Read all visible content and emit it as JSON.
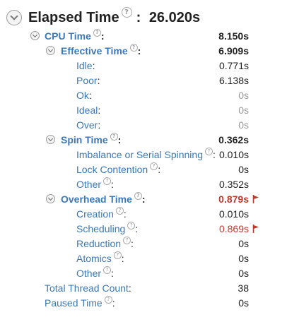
{
  "header": {
    "title": "Elapsed Time",
    "colon": ":",
    "value": "26.020s"
  },
  "help_glyph": "?",
  "colon": ":",
  "rows": [
    {
      "label": "CPU Time",
      "value": "8.150s"
    },
    {
      "label": "Effective Time",
      "value": "6.909s"
    },
    {
      "label": "Idle",
      "value": "0.771s"
    },
    {
      "label": "Poor",
      "value": "6.138s"
    },
    {
      "label": "Ok",
      "value": "0s"
    },
    {
      "label": "Ideal",
      "value": "0s"
    },
    {
      "label": "Over",
      "value": "0s"
    },
    {
      "label": "Spin Time",
      "value": "0.362s"
    },
    {
      "label": "Imbalance or Serial Spinning",
      "value": "0.010s"
    },
    {
      "label": "Lock Contention",
      "value": "0s"
    },
    {
      "label": "Other",
      "value": "0.352s"
    },
    {
      "label": "Overhead Time",
      "value": "0.879s"
    },
    {
      "label": "Creation",
      "value": "0.010s"
    },
    {
      "label": "Scheduling",
      "value": "0.869s"
    },
    {
      "label": "Reduction",
      "value": "0s"
    },
    {
      "label": "Atomics",
      "value": "0s"
    },
    {
      "label": "Other",
      "value": "0s"
    },
    {
      "label": "Total Thread Count",
      "value": "38"
    },
    {
      "label": "Paused Time",
      "value": "0s"
    }
  ],
  "icons": {
    "expand": "chevron-down-icon",
    "help": "help-icon",
    "alert": "red-flag-icon"
  },
  "colors": {
    "link": "#3a78b8",
    "warning": "#c0392b",
    "zero": "#9a9a9a"
  }
}
